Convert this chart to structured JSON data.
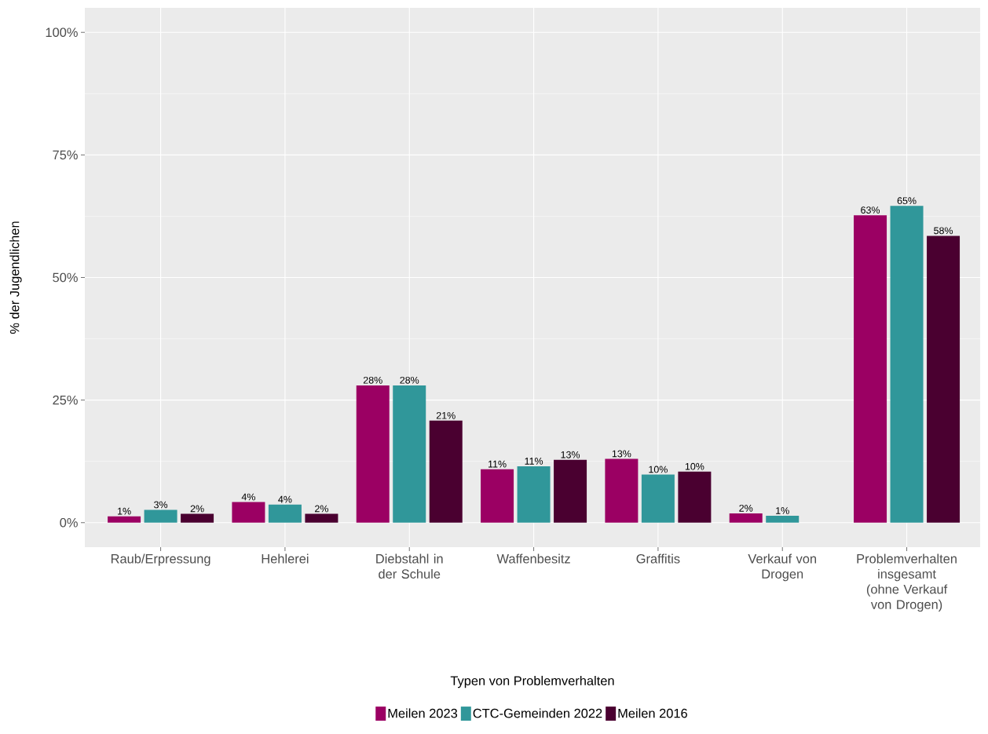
{
  "chart_data": {
    "type": "bar",
    "xlabel": "Typen von Problemverhalten",
    "ylabel": "% der Jugendlichen",
    "categories": [
      "Raub/Erpressung",
      "Hehlerei",
      "Diebstahl in der Schule",
      "Waffenbesitz",
      "Graffitis",
      "Verkauf von Drogen",
      "Problemverhalten insgesamt (ohne Verkauf von Drogen)"
    ],
    "series": [
      {
        "name": "Meilen 2023",
        "color": "#9b0063",
        "values": [
          1.3,
          4.2,
          28.0,
          10.9,
          13.0,
          1.9,
          62.7
        ],
        "value_labels": [
          "1%",
          "4%",
          "28%",
          "11%",
          "13%",
          "2%",
          "63%"
        ]
      },
      {
        "name": "CTC-Gemeinden 2022",
        "color": "#30979a",
        "values": [
          2.6,
          3.7,
          28.0,
          11.5,
          9.8,
          1.4,
          64.6
        ],
        "value_labels": [
          "3%",
          "4%",
          "28%",
          "11%",
          "10%",
          "1%",
          "65%"
        ]
      },
      {
        "name": "Meilen 2016",
        "color": "#4a0030",
        "values": [
          1.8,
          1.8,
          20.8,
          12.8,
          10.4,
          null,
          58.5
        ],
        "value_labels": [
          "2%",
          "2%",
          "21%",
          "13%",
          "10%",
          null,
          "58%"
        ]
      }
    ],
    "ylim": [
      -5,
      105
    ],
    "yticks": [
      {
        "value": 0,
        "label": "0%"
      },
      {
        "value": 25,
        "label": "25%"
      },
      {
        "value": 50,
        "label": "50%"
      },
      {
        "value": 75,
        "label": "75%"
      },
      {
        "value": 100,
        "label": "100%"
      }
    ],
    "grid": true,
    "legend": "bottom"
  }
}
